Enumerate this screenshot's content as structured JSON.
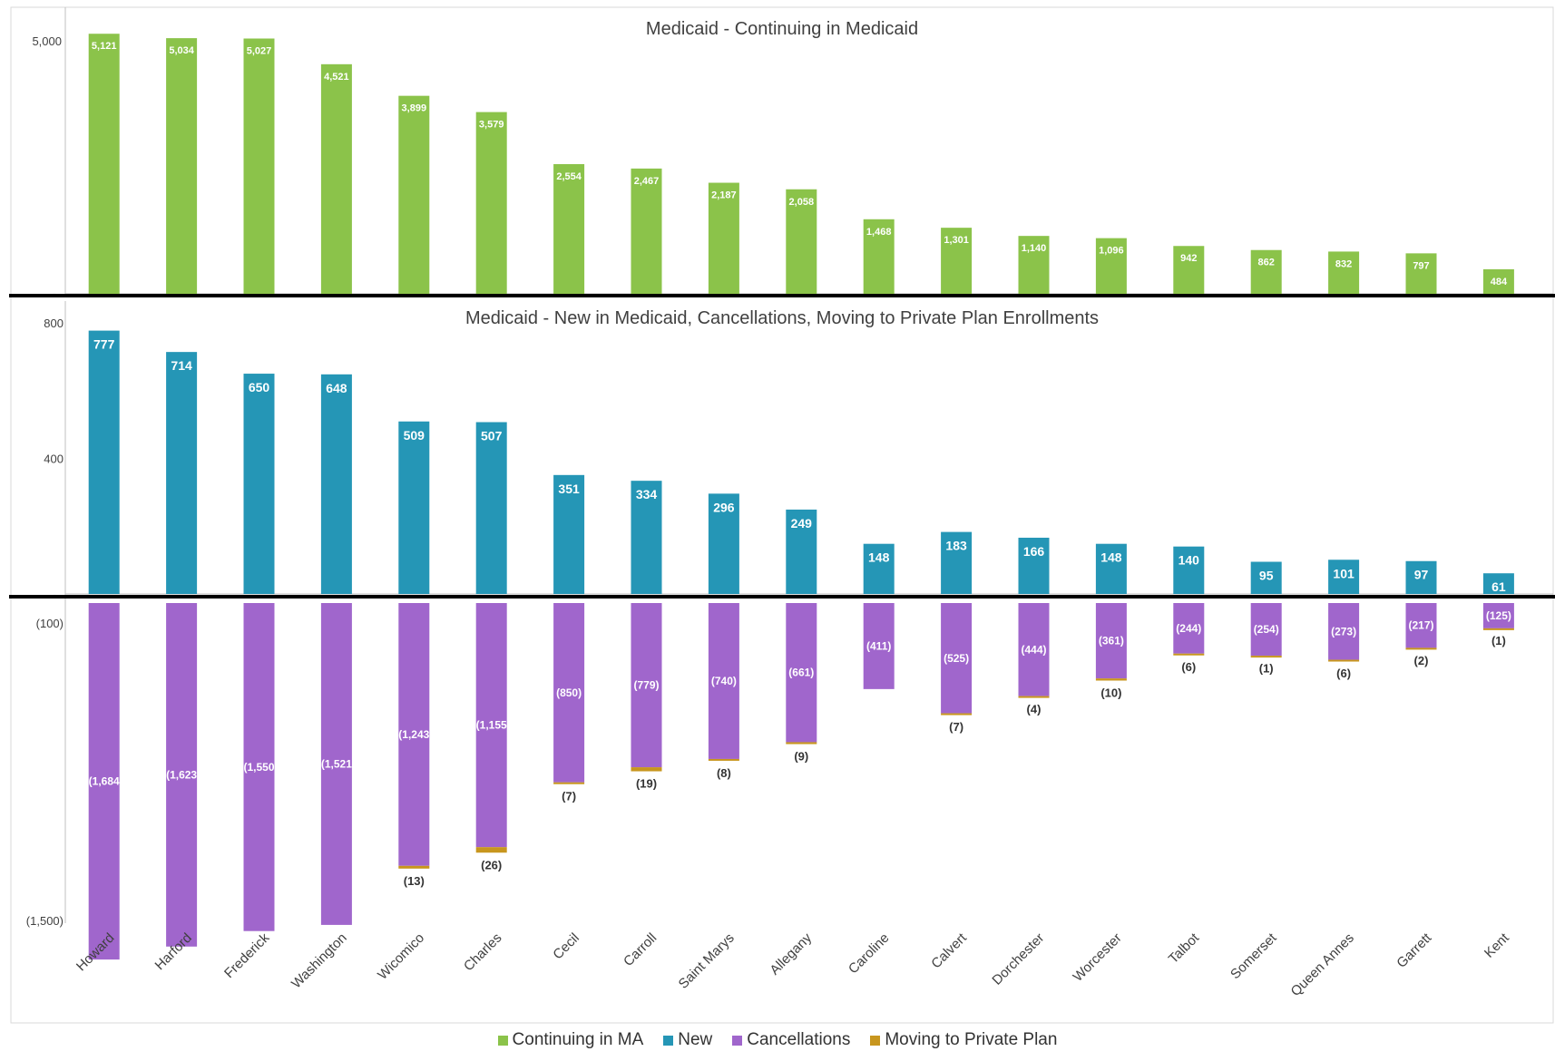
{
  "chart_data": {
    "type": "bar",
    "categories": [
      "Howard",
      "Harford",
      "Frederick",
      "Washington",
      "Wicomico",
      "Charles",
      "Cecil",
      "Carroll",
      "Saint Marys",
      "Allegany",
      "Caroline",
      "Calvert",
      "Dorchester",
      "Worcester",
      "Talbot",
      "Somerset",
      "Queen Annes",
      "Garrett",
      "Kent"
    ],
    "colors": {
      "continuing": "#8BC34A",
      "new": "#2596B6",
      "cancellations": "#A066CC",
      "moving": "#C8961E"
    },
    "panels": [
      {
        "title": "Medicaid - Continuing in Medicaid",
        "yticks": [
          "5,000",
          "-"
        ],
        "series": [
          {
            "name": "Continuing in MA",
            "values": [
              5121,
              5034,
              5027,
              4521,
              3899,
              3579,
              2554,
              2467,
              2187,
              2058,
              1468,
              1301,
              1140,
              1096,
              942,
              862,
              832,
              797,
              484
            ],
            "labels": [
              "5,121",
              "5,034",
              "5,027",
              "4,521",
              "3,899",
              "3,579",
              "2,554",
              "2,467",
              "2,187",
              "2,058",
              "1,468",
              "1,301",
              "1,140",
              "1,096",
              "942",
              "862",
              "832",
              "797",
              "484"
            ]
          }
        ]
      },
      {
        "title": "Medicaid - New in Medicaid, Cancellations, Moving to Private Plan Enrollments",
        "yticks": [
          "800",
          "400",
          "-",
          "(100)",
          "(1,500)"
        ],
        "series": [
          {
            "name": "New",
            "values": [
              777,
              714,
              650,
              648,
              509,
              507,
              351,
              334,
              296,
              249,
              148,
              183,
              166,
              148,
              140,
              95,
              101,
              97,
              61
            ],
            "labels": [
              "777",
              "714",
              "650",
              "648",
              "509",
              "507",
              "351",
              "334",
              "296",
              "249",
              "148",
              "183",
              "166",
              "148",
              "140",
              "95",
              "101",
              "97",
              "61"
            ]
          },
          {
            "name": "Cancellations",
            "values": [
              -1684,
              -1623,
              -1550,
              -1521,
              -1243,
              -1155,
              -850,
              -779,
              -740,
              -661,
              -411,
              -525,
              -444,
              -361,
              -244,
              -254,
              -273,
              -217,
              -125
            ],
            "labels": [
              "(1,684",
              "(1,623",
              "(1,550",
              "(1,521",
              "(1,243",
              "(1,155",
              "(850)",
              "(779)",
              "(740)",
              "(661)",
              "(411)",
              "(525)",
              "(444)",
              "(361)",
              "(244)",
              "(254)",
              "(273)",
              "(217)",
              "(125)"
            ]
          },
          {
            "name": "Moving to Private Plan",
            "values": [
              0,
              0,
              0,
              0,
              -13,
              -26,
              -7,
              -19,
              -8,
              -9,
              0,
              -7,
              -4,
              -10,
              -6,
              -1,
              -6,
              -2,
              -1
            ],
            "labels": [
              "",
              "",
              "",
              "",
              "(13)",
              "(26)",
              "(7)",
              "(19)",
              "(8)",
              "(9)",
              "",
              "(7)",
              "(4)",
              "(10)",
              "(6)",
              "(1)",
              "(6)",
              "(2)",
              "(1)"
            ]
          }
        ]
      }
    ],
    "legend": [
      "Continuing in MA",
      "New",
      "Cancellations",
      "Moving to Private Plan"
    ]
  }
}
